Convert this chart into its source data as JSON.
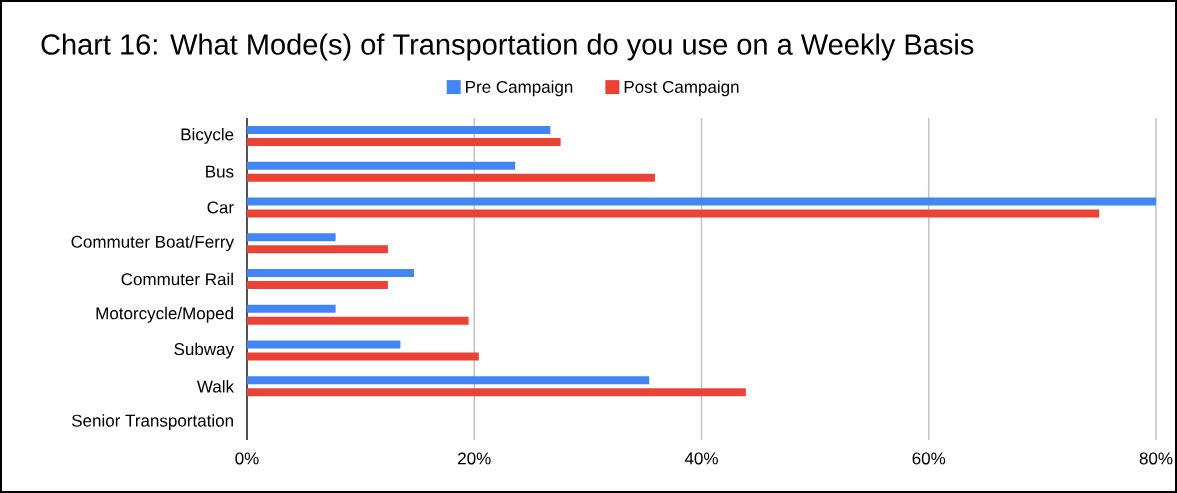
{
  "chart_data": {
    "type": "bar",
    "orientation": "horizontal",
    "title": "Chart 16: What Mode(s) of Transportation do you use on a Weekly Basis",
    "categories": [
      "Bicycle",
      "Bus",
      "Car",
      "Commuter Boat/Ferry",
      "Commuter Rail",
      "Motorcycle/Moped",
      "Subway",
      "Walk",
      "Senior Transportation"
    ],
    "series": [
      {
        "name": "Pre Campaign",
        "color": "#4285f4",
        "values": [
          26.7,
          23.6,
          80,
          7.8,
          14.7,
          7.8,
          13.5,
          35.4,
          0
        ]
      },
      {
        "name": "Post Campaign",
        "color": "#ea4335",
        "values": [
          27.6,
          35.9,
          75,
          12.4,
          12.4,
          19.5,
          20.4,
          43.9,
          0
        ]
      }
    ],
    "xlim": [
      0,
      80
    ],
    "xticks": [
      {
        "value": 0,
        "label": "0%"
      },
      {
        "value": 20,
        "label": "20%"
      },
      {
        "value": 40,
        "label": "40%"
      },
      {
        "value": 60,
        "label": "60%"
      },
      {
        "value": 80,
        "label": "80%"
      }
    ],
    "grid": "x",
    "legend": "top"
  }
}
